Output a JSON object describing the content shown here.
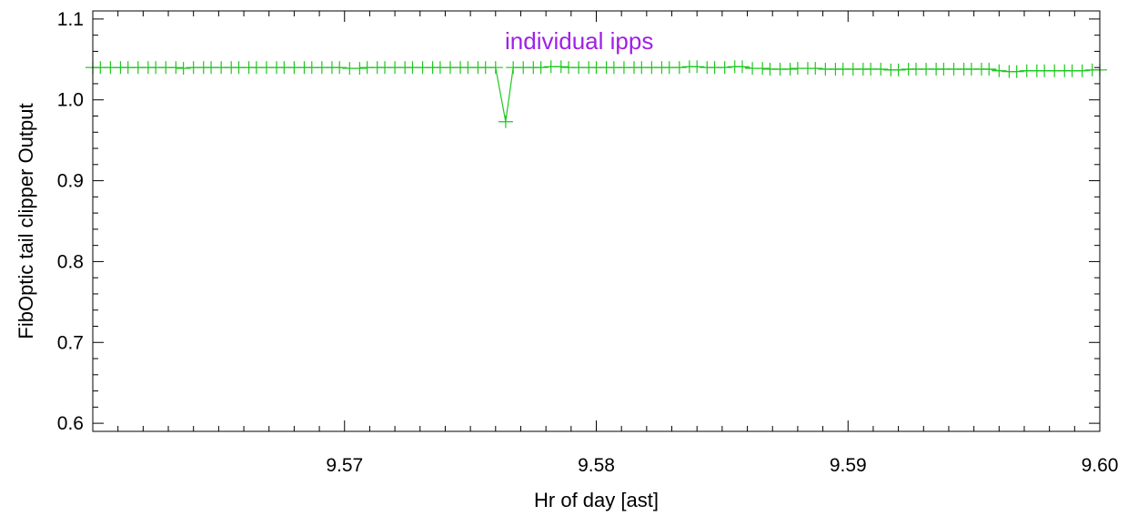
{
  "chart_data": {
    "type": "line",
    "xlabel": "Hr of day [ast]",
    "ylabel": "FibOptic tail clipper Output",
    "annotation": "individual ipps",
    "xlim": [
      9.56,
      9.6
    ],
    "ylim": [
      0.59,
      1.11
    ],
    "x_ticks": [
      {
        "value": 9.57,
        "label": "9.57"
      },
      {
        "value": 9.58,
        "label": "9.58"
      },
      {
        "value": 9.59,
        "label": "9.59"
      },
      {
        "value": 9.6,
        "label": "9.60"
      }
    ],
    "y_ticks": [
      {
        "value": 0.6,
        "label": "0.6"
      },
      {
        "value": 0.7,
        "label": "0.7"
      },
      {
        "value": 0.8,
        "label": "0.8"
      },
      {
        "value": 0.9,
        "label": "0.9"
      },
      {
        "value": 1.0,
        "label": "1.0"
      },
      {
        "value": 1.1,
        "label": "1.1"
      }
    ],
    "x_minor_step": 0.001,
    "y_minor_step": 0.02,
    "grid": false,
    "marker": "plus",
    "series": [
      {
        "x": [
          9.56,
          9.5603,
          9.5607,
          9.5611,
          9.5614,
          9.5618,
          9.5622,
          9.5625,
          9.5629,
          9.5633,
          9.5636,
          9.564,
          9.5644,
          9.5647,
          9.5651,
          9.5655,
          9.5658,
          9.5662,
          9.5665,
          9.5669,
          9.5673,
          9.5676,
          9.568,
          9.5684,
          9.5687,
          9.5691,
          9.5695,
          9.5698,
          9.5702,
          9.5706,
          9.5709,
          9.5713,
          9.5716,
          9.572,
          9.5724,
          9.5727,
          9.5731,
          9.5735,
          9.5738,
          9.5742,
          9.5746,
          9.5749,
          9.5753,
          9.5756,
          9.576,
          9.5764,
          9.5767,
          9.5771,
          9.5775,
          9.5778,
          9.5782,
          9.5786,
          9.5789,
          9.5793,
          9.5797,
          9.58,
          9.5804,
          9.5807,
          9.5811,
          9.5815,
          9.5818,
          9.5822,
          9.5826,
          9.5829,
          9.5833,
          9.5837,
          9.584,
          9.5844,
          9.5847,
          9.5851,
          9.5855,
          9.5858,
          9.5862,
          9.5866,
          9.5869,
          9.5873,
          9.5877,
          9.588,
          9.5884,
          9.5887,
          9.5891,
          9.5895,
          9.5898,
          9.5902,
          9.5906,
          9.5909,
          9.5913,
          9.5917,
          9.592,
          9.5924,
          9.5927,
          9.5931,
          9.5935,
          9.5938,
          9.5942,
          9.5946,
          9.5949,
          9.5953,
          9.5956,
          9.596,
          9.5964,
          9.5967,
          9.5971,
          9.5975,
          9.5978,
          9.5982,
          9.5986,
          9.5989,
          9.5993,
          9.5997,
          9.6
        ],
        "y": [
          1.04,
          1.04,
          1.04,
          1.04,
          1.04,
          1.04,
          1.04,
          1.04,
          1.04,
          1.04,
          1.039,
          1.04,
          1.04,
          1.04,
          1.04,
          1.04,
          1.04,
          1.04,
          1.04,
          1.04,
          1.04,
          1.04,
          1.04,
          1.04,
          1.04,
          1.04,
          1.04,
          1.04,
          1.039,
          1.039,
          1.04,
          1.04,
          1.04,
          1.04,
          1.04,
          1.04,
          1.04,
          1.04,
          1.04,
          1.04,
          1.04,
          1.04,
          1.04,
          1.04,
          1.04,
          0.973,
          1.04,
          1.04,
          1.04,
          1.04,
          1.041,
          1.041,
          1.04,
          1.04,
          1.04,
          1.04,
          1.04,
          1.04,
          1.04,
          1.04,
          1.04,
          1.04,
          1.04,
          1.04,
          1.04,
          1.041,
          1.041,
          1.04,
          1.04,
          1.04,
          1.041,
          1.041,
          1.039,
          1.039,
          1.038,
          1.038,
          1.038,
          1.039,
          1.039,
          1.039,
          1.038,
          1.038,
          1.038,
          1.038,
          1.038,
          1.038,
          1.038,
          1.037,
          1.037,
          1.038,
          1.038,
          1.038,
          1.038,
          1.038,
          1.038,
          1.038,
          1.038,
          1.038,
          1.038,
          1.036,
          1.035,
          1.035,
          1.036,
          1.036,
          1.036,
          1.036,
          1.036,
          1.036,
          1.036,
          1.037,
          1.037
        ]
      }
    ],
    "colors": {
      "series": "#1ec81e",
      "annotation": "#a020e6",
      "axes": "#000000"
    }
  }
}
